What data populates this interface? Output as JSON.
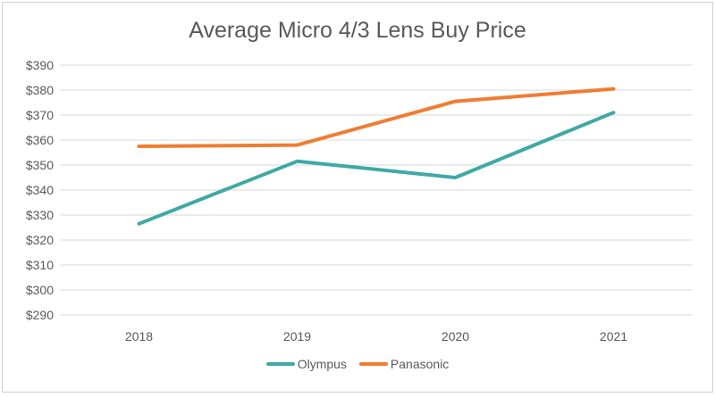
{
  "chart_data": {
    "type": "line",
    "title": "Average Micro 4/3 Lens Buy Price",
    "xlabel": "",
    "ylabel": "",
    "categories": [
      "2018",
      "2019",
      "2020",
      "2021"
    ],
    "ylim": [
      290,
      390
    ],
    "yticks": [
      290,
      300,
      310,
      320,
      330,
      340,
      350,
      360,
      370,
      380,
      390
    ],
    "ytick_labels": [
      "$290",
      "$300",
      "$310",
      "$320",
      "$330",
      "$340",
      "$350",
      "$360",
      "$370",
      "$380",
      "$390"
    ],
    "grid": true,
    "legend_position": "bottom",
    "series": [
      {
        "name": "Olympus",
        "color": "#3fa9a5",
        "values": [
          326.5,
          351.5,
          345,
          371
        ]
      },
      {
        "name": "Panasonic",
        "color": "#ef7d31",
        "values": [
          357.5,
          358,
          375.5,
          380.5
        ]
      }
    ]
  }
}
